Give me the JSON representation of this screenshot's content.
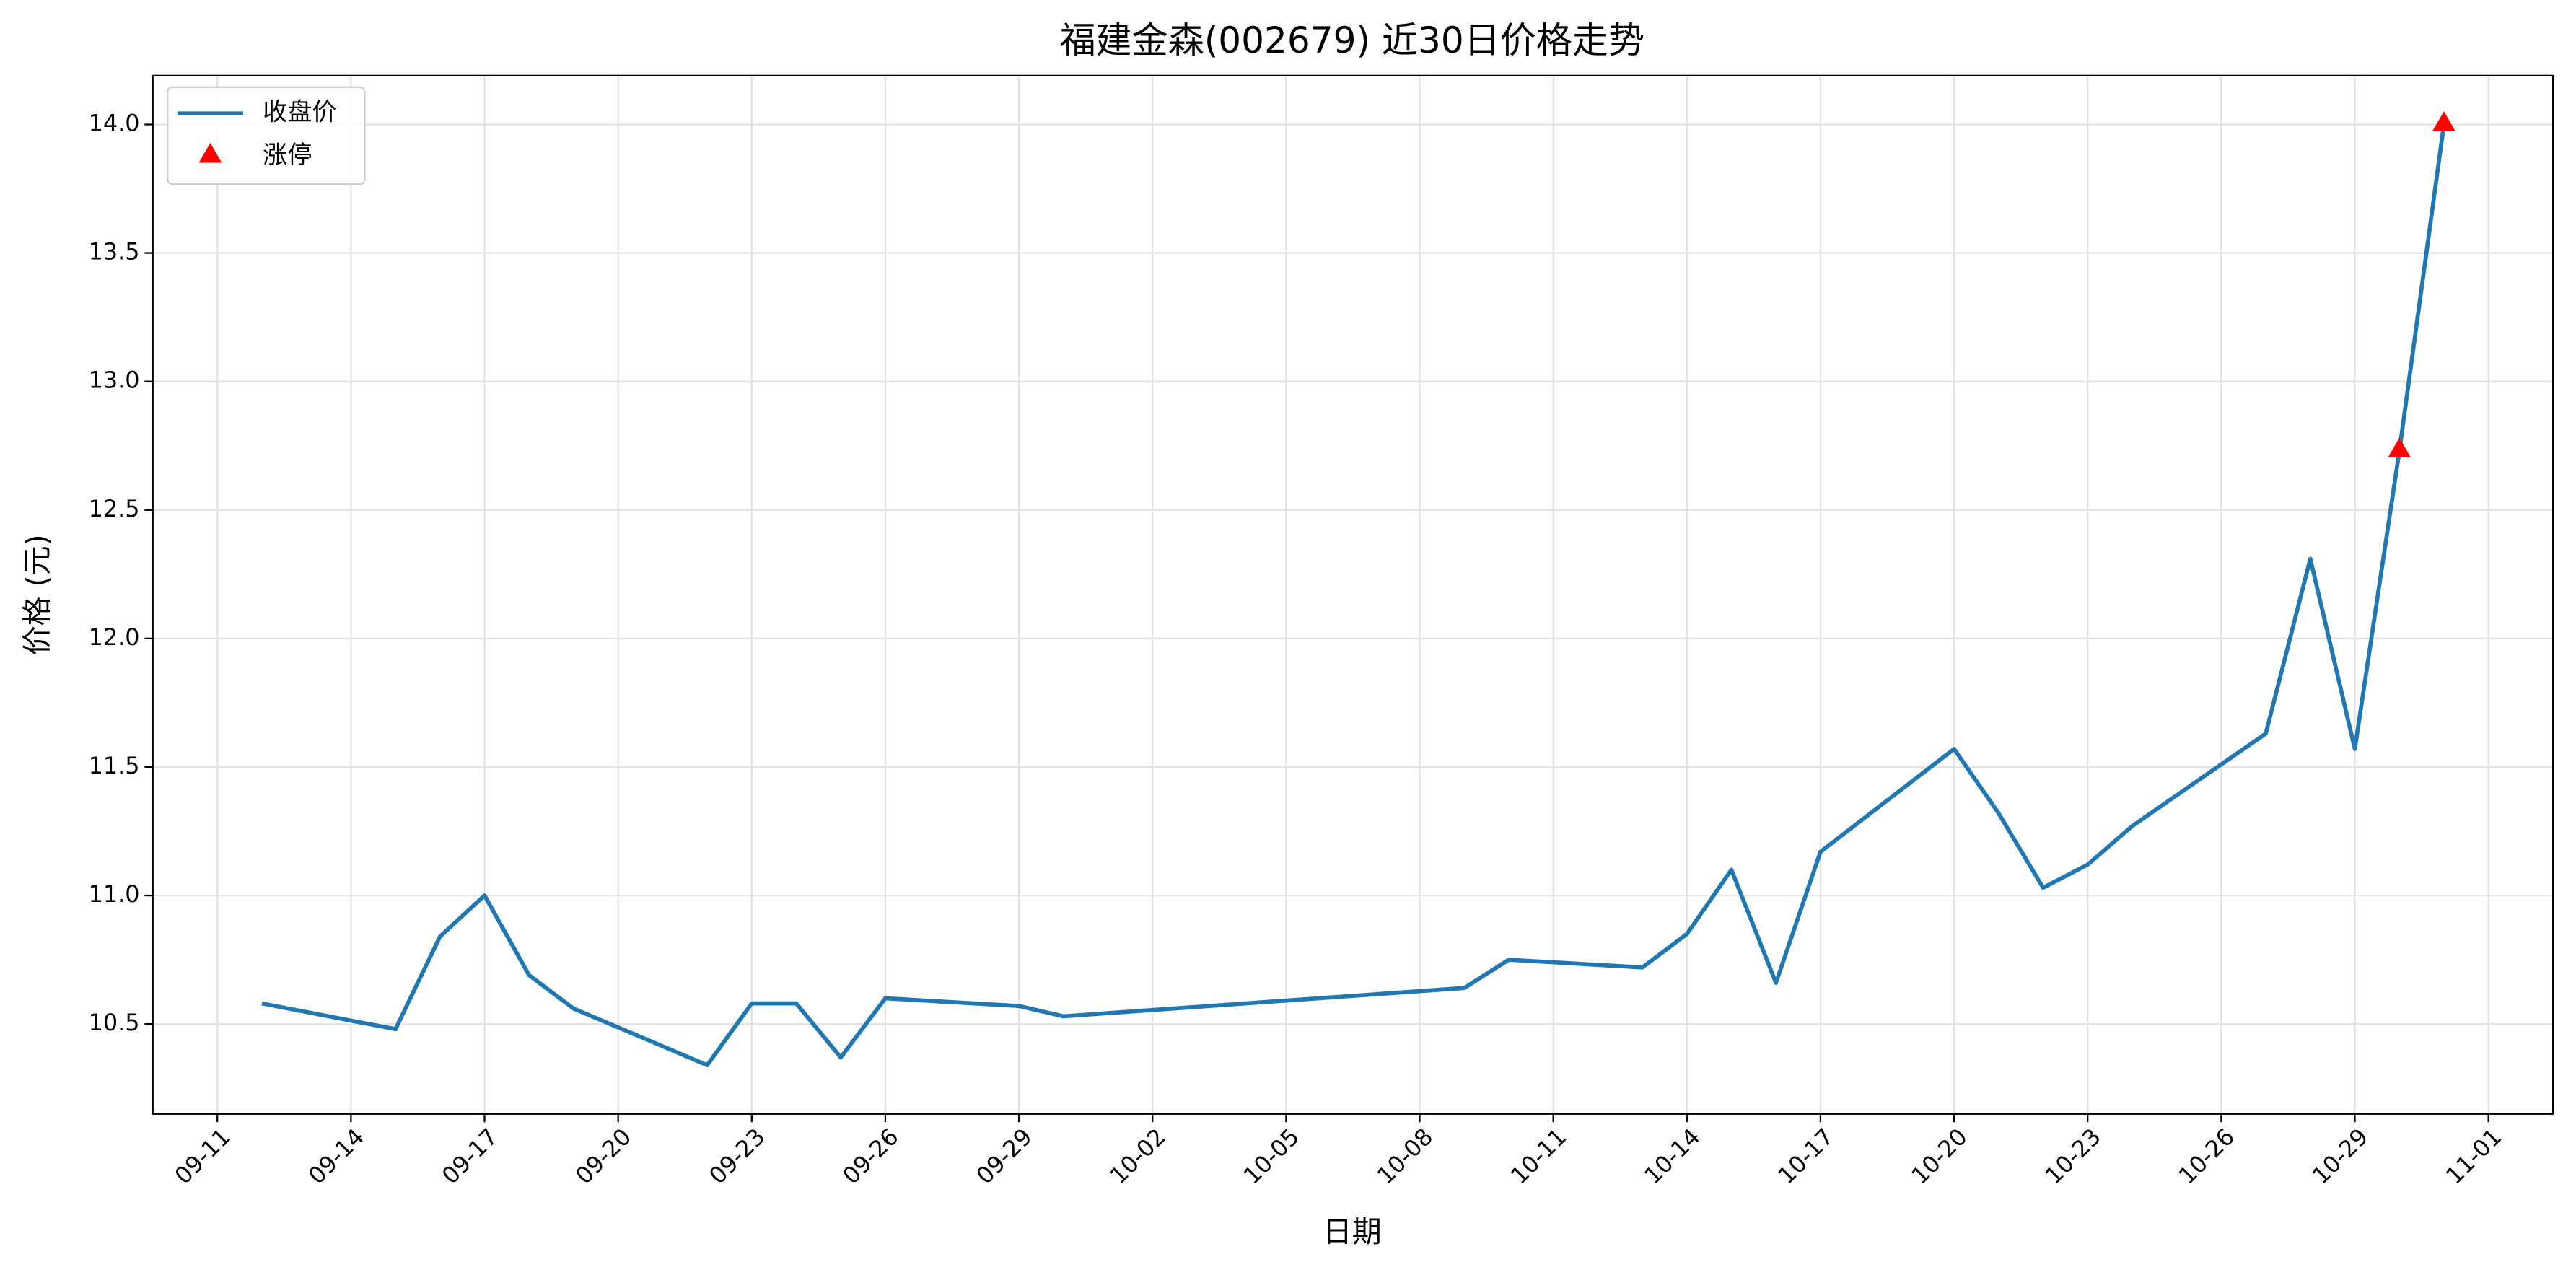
{
  "chart_data": {
    "type": "line",
    "title": "福建金森(002679) 近30日价格走势",
    "x_label": "日期",
    "y_label": "价格 (元)",
    "series": [
      {
        "name": "收盘价",
        "type": "line",
        "color": "#1f77b4",
        "x": [
          "09-12",
          "09-15",
          "09-16",
          "09-17",
          "09-18",
          "09-19",
          "09-22",
          "09-23",
          "09-24",
          "09-25",
          "09-26",
          "09-29",
          "09-30",
          "10-09",
          "10-10",
          "10-13",
          "10-14",
          "10-15",
          "10-16",
          "10-17",
          "10-20",
          "10-21",
          "10-22",
          "10-23",
          "10-24",
          "10-27",
          "10-28",
          "10-29",
          "10-30",
          "10-31"
        ],
        "values": [
          10.58,
          10.48,
          10.84,
          11.0,
          10.69,
          10.56,
          10.34,
          10.58,
          10.58,
          10.37,
          10.6,
          10.57,
          10.53,
          10.64,
          10.75,
          10.72,
          10.85,
          11.1,
          10.66,
          11.17,
          11.57,
          11.32,
          11.03,
          11.12,
          11.27,
          11.63,
          12.31,
          11.57,
          12.73,
          14.0
        ]
      },
      {
        "name": "涨停",
        "type": "scatter",
        "marker": "triangle",
        "color": "#ff0000",
        "x": [
          "10-30",
          "10-31"
        ],
        "values": [
          12.73,
          14.0
        ]
      }
    ],
    "xticks": [
      "09-11",
      "09-14",
      "09-17",
      "09-20",
      "09-23",
      "09-26",
      "09-29",
      "10-02",
      "10-05",
      "10-08",
      "10-11",
      "10-14",
      "10-17",
      "10-20",
      "10-23",
      "10-26",
      "10-29",
      "11-01"
    ],
    "ylim": [
      10.15,
      14.19
    ],
    "yticks": [
      10.5,
      {
        "value": 11,
        "label": "11.0"
      },
      11.5,
      {
        "value": 12,
        "label": "12.0"
      },
      12.5,
      {
        "value": 13,
        "label": "13.0"
      },
      13.5,
      {
        "value": 14,
        "label": "14.0"
      }
    ],
    "grid": true,
    "legend": "upper-left"
  }
}
